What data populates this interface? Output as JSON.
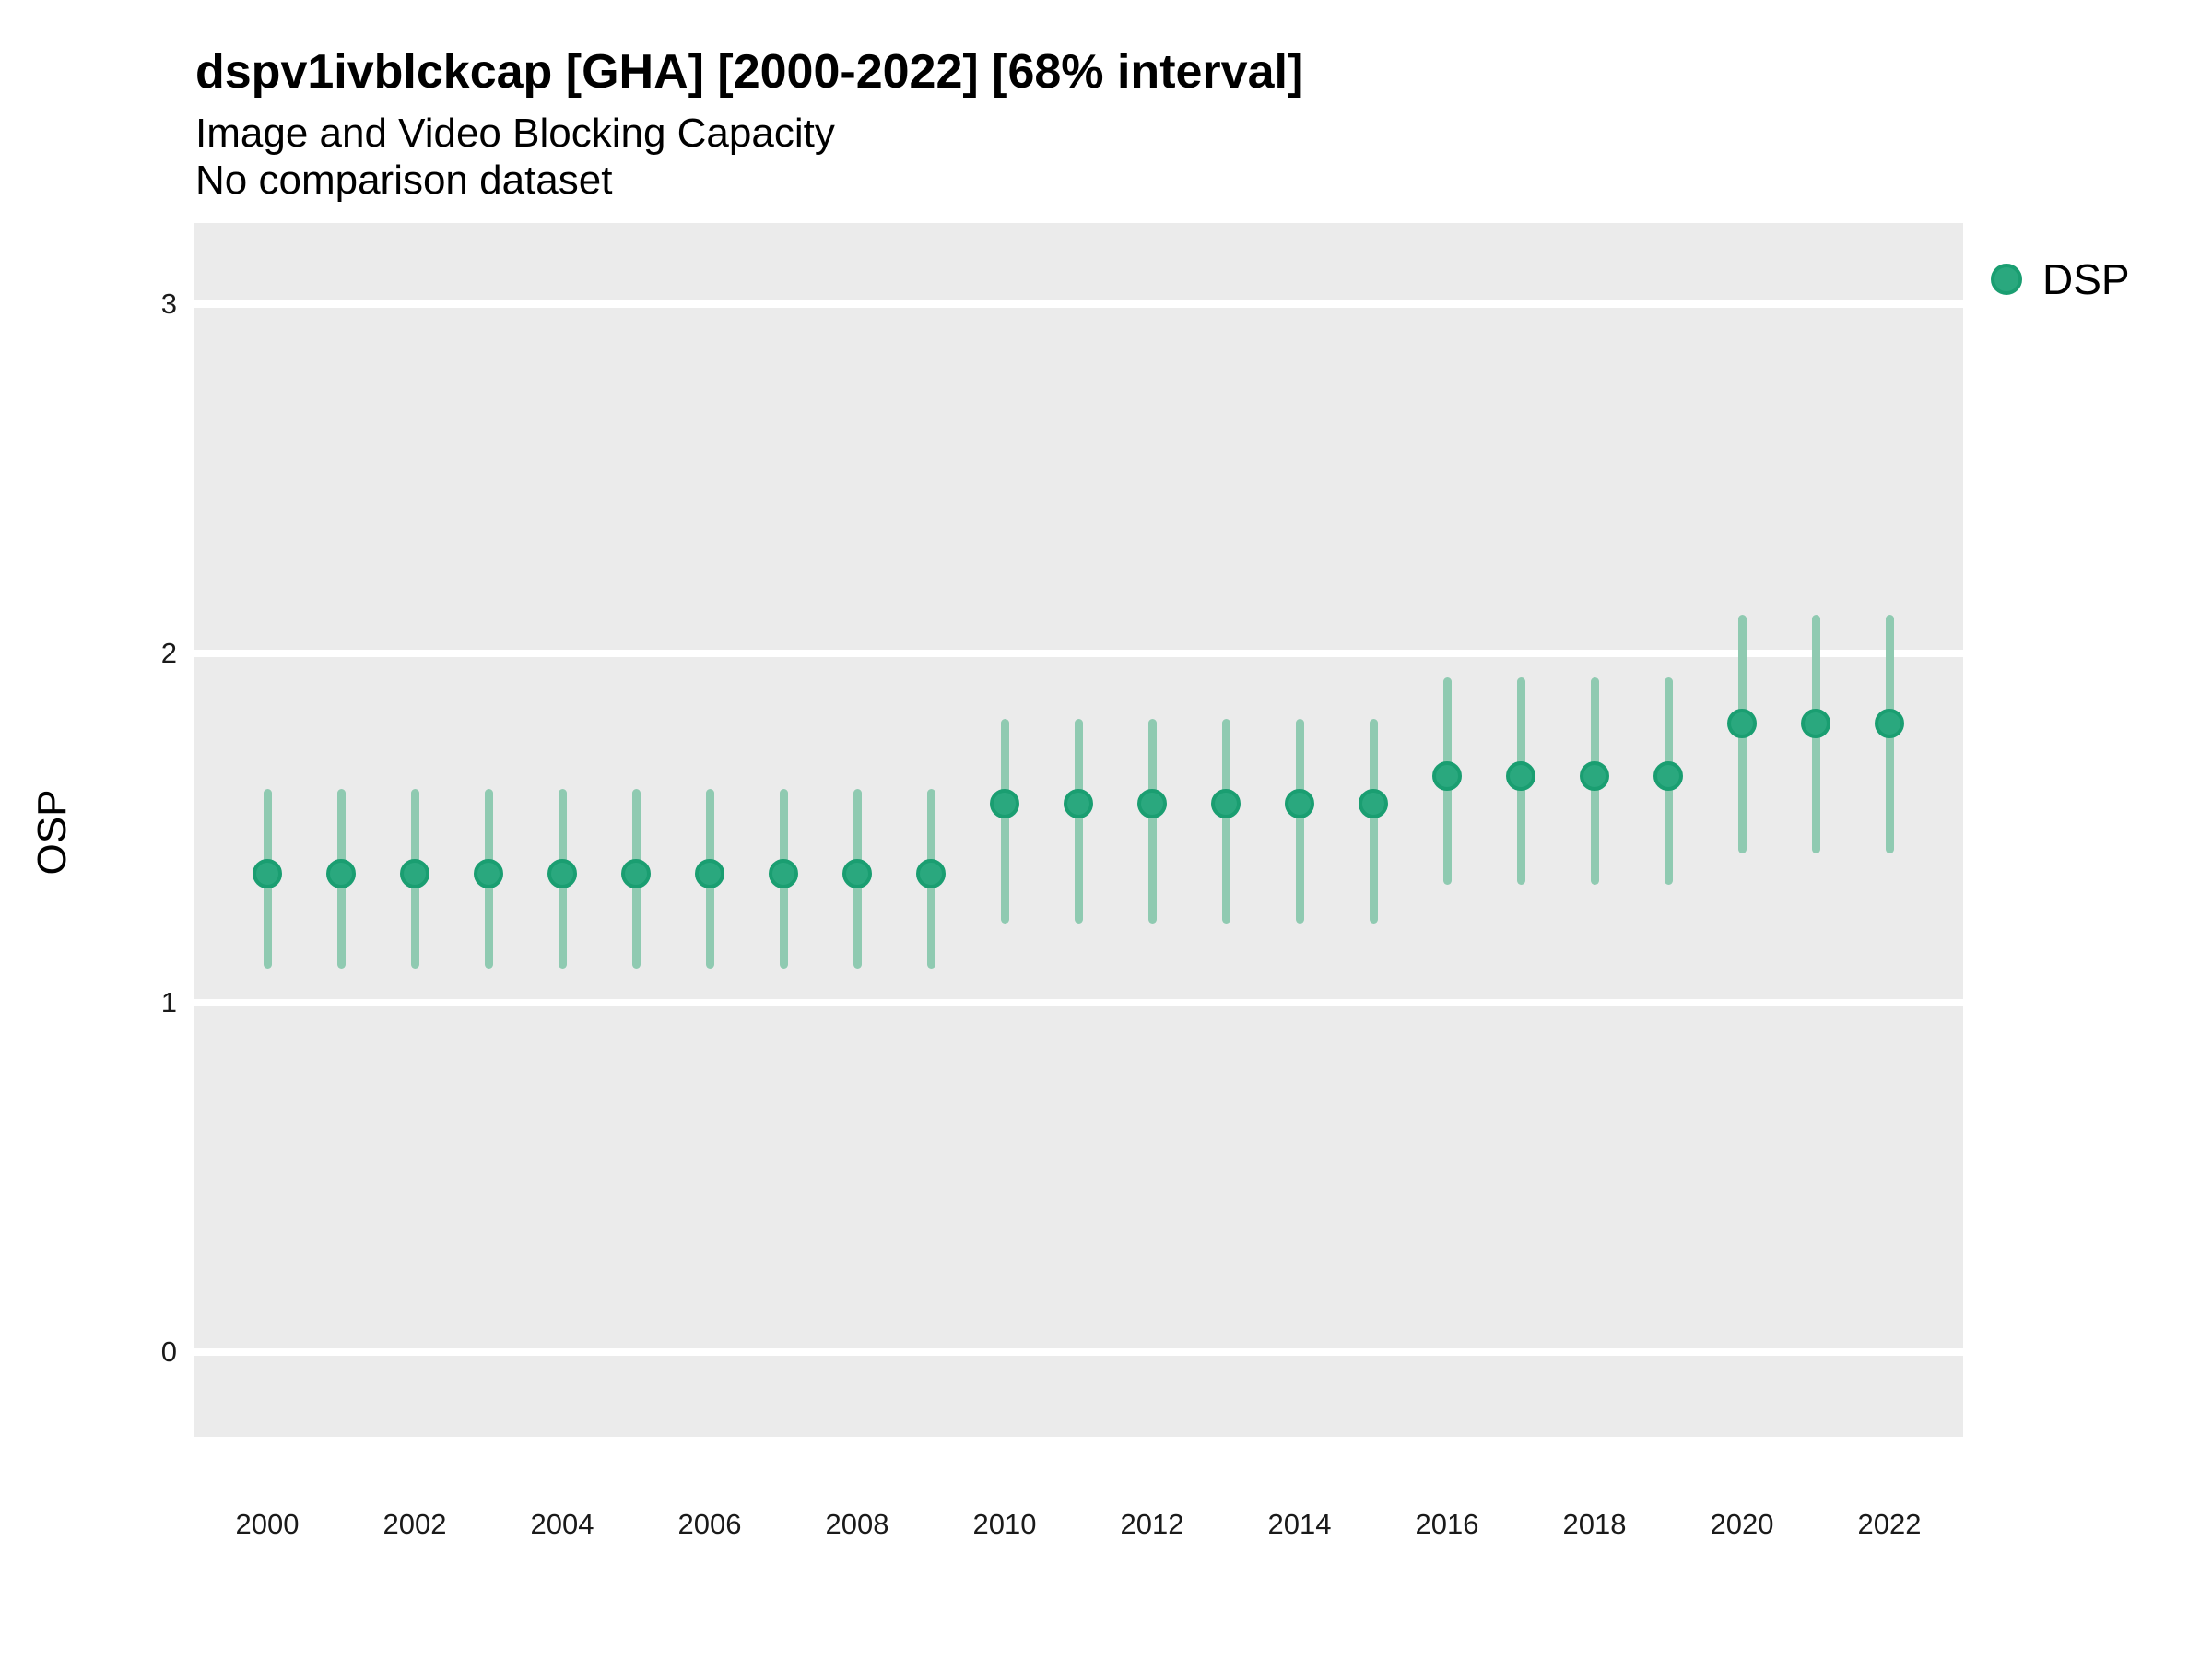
{
  "title": "dspv1ivblckcap [GHA] [2000-2022] [68% interval]",
  "subtitle": "Image and Video Blocking Capacity",
  "subtitle2": "No comparison dataset",
  "legend": {
    "label": "DSP",
    "position": "right"
  },
  "y_axis": {
    "label": "OSP",
    "ticks": [
      3,
      2,
      1,
      0
    ]
  },
  "x_axis": {
    "ticks": [
      2000,
      2002,
      2004,
      2006,
      2008,
      2010,
      2012,
      2014,
      2016,
      2018,
      2020,
      2022
    ]
  },
  "colors": {
    "point_fill": "#2aa87e",
    "point_stroke": "#1a9e71",
    "interval_bar": "#8fcab1",
    "panel_background": "#ebebeb",
    "gridline": "#ffffff",
    "text": "#000000"
  },
  "chart_data": {
    "type": "scatter",
    "title": "dspv1ivblckcap [GHA] [2000-2022] [68% interval]",
    "subtitle": "Image and Video Blocking Capacity",
    "note": "No comparison dataset",
    "xlabel": "",
    "ylabel": "OSP",
    "ylim": [
      -0.25,
      3.23
    ],
    "interval_level": "68%",
    "grid": "horizontal-white-on-gray",
    "legend_position": "right",
    "series": [
      {
        "name": "DSP",
        "points": [
          {
            "year": 2000,
            "value": 1.37,
            "lo": 1.11,
            "hi": 1.6
          },
          {
            "year": 2001,
            "value": 1.37,
            "lo": 1.11,
            "hi": 1.6
          },
          {
            "year": 2002,
            "value": 1.37,
            "lo": 1.11,
            "hi": 1.6
          },
          {
            "year": 2003,
            "value": 1.37,
            "lo": 1.11,
            "hi": 1.6
          },
          {
            "year": 2004,
            "value": 1.37,
            "lo": 1.11,
            "hi": 1.6
          },
          {
            "year": 2005,
            "value": 1.37,
            "lo": 1.11,
            "hi": 1.6
          },
          {
            "year": 2006,
            "value": 1.37,
            "lo": 1.11,
            "hi": 1.6
          },
          {
            "year": 2007,
            "value": 1.37,
            "lo": 1.11,
            "hi": 1.6
          },
          {
            "year": 2008,
            "value": 1.37,
            "lo": 1.11,
            "hi": 1.6
          },
          {
            "year": 2009,
            "value": 1.37,
            "lo": 1.11,
            "hi": 1.6
          },
          {
            "year": 2010,
            "value": 1.57,
            "lo": 1.24,
            "hi": 1.8
          },
          {
            "year": 2011,
            "value": 1.57,
            "lo": 1.24,
            "hi": 1.8
          },
          {
            "year": 2012,
            "value": 1.57,
            "lo": 1.24,
            "hi": 1.8
          },
          {
            "year": 2013,
            "value": 1.57,
            "lo": 1.24,
            "hi": 1.8
          },
          {
            "year": 2014,
            "value": 1.57,
            "lo": 1.24,
            "hi": 1.8
          },
          {
            "year": 2015,
            "value": 1.57,
            "lo": 1.24,
            "hi": 1.8
          },
          {
            "year": 2016,
            "value": 1.65,
            "lo": 1.35,
            "hi": 1.92
          },
          {
            "year": 2017,
            "value": 1.65,
            "lo": 1.35,
            "hi": 1.92
          },
          {
            "year": 2018,
            "value": 1.65,
            "lo": 1.35,
            "hi": 1.92
          },
          {
            "year": 2019,
            "value": 1.65,
            "lo": 1.35,
            "hi": 1.92
          },
          {
            "year": 2020,
            "value": 1.8,
            "lo": 1.44,
            "hi": 2.1
          },
          {
            "year": 2021,
            "value": 1.8,
            "lo": 1.44,
            "hi": 2.1
          },
          {
            "year": 2022,
            "value": 1.8,
            "lo": 1.44,
            "hi": 2.1
          }
        ]
      }
    ]
  }
}
